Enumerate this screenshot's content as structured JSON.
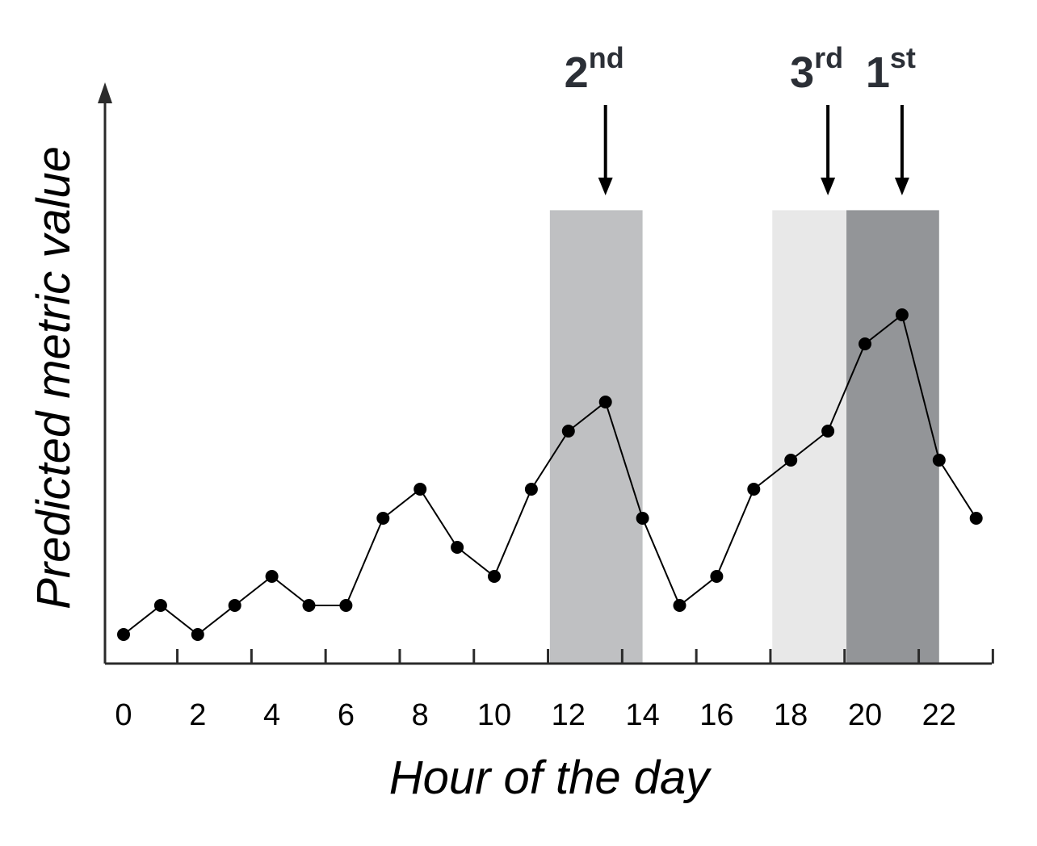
{
  "chart_data": {
    "type": "line",
    "xlabel": "Hour of the day",
    "ylabel": "Predicted metric value",
    "x_ticks": [
      0,
      2,
      4,
      6,
      8,
      10,
      12,
      14,
      16,
      18,
      20,
      22
    ],
    "xlim": [
      -0.5,
      23.5
    ],
    "ylim": [
      0,
      10
    ],
    "grid": false,
    "series": [
      {
        "x": [
          0,
          1,
          2,
          3,
          4,
          5,
          6,
          7,
          8,
          9,
          10,
          11,
          12,
          13,
          14,
          15,
          16,
          17,
          18,
          19,
          20,
          21,
          22,
          23
        ],
        "values": [
          0.5,
          1.0,
          0.5,
          1.0,
          1.5,
          1.0,
          1.0,
          2.5,
          3.0,
          2.0,
          1.5,
          3.0,
          4.0,
          4.5,
          2.5,
          1.0,
          1.5,
          3.0,
          3.5,
          4.0,
          5.5,
          6.0,
          3.5,
          2.5
        ]
      }
    ],
    "highlights": [
      {
        "x_start": 11.5,
        "x_end": 14.0,
        "color": "#bfc0c2",
        "rank_number": "2",
        "rank_suffix": "nd",
        "arrow_x": 13
      },
      {
        "x_start": 17.5,
        "x_end": 19.5,
        "color": "#e8e8e8",
        "rank_number": "3",
        "rank_suffix": "rd",
        "arrow_x": 19
      },
      {
        "x_start": 19.5,
        "x_end": 22.0,
        "color": "#939598",
        "rank_number": "1",
        "rank_suffix": "st",
        "arrow_x": 21
      }
    ],
    "highlight_top": 7.8,
    "line_color": "#000000",
    "marker_color": "#000000"
  }
}
